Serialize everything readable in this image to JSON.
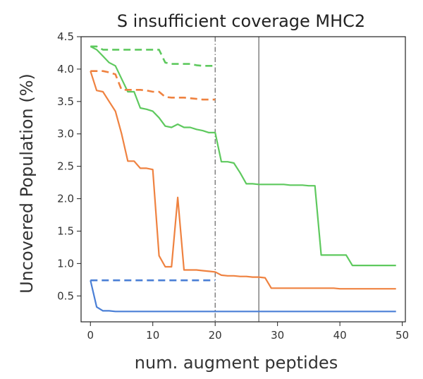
{
  "chart_data": {
    "type": "line",
    "title": "S insufficient coverage MHC2",
    "xlabel": "num. augment peptides",
    "ylabel": "Uncovered Population (%)",
    "xlim": [
      -1.5,
      50.5
    ],
    "ylim": [
      0.1,
      4.5
    ],
    "xticks": [
      0,
      10,
      20,
      30,
      40,
      50
    ],
    "yticks": [
      0.5,
      1.0,
      1.5,
      2.0,
      2.5,
      3.0,
      3.5,
      4.0,
      4.5
    ],
    "xtick_labels": [
      "0",
      "10",
      "20",
      "30",
      "40",
      "50"
    ],
    "ytick_labels": [
      "0.5",
      "1.0",
      "1.5",
      "2.0",
      "2.5",
      "3.0",
      "3.5",
      "4.0",
      "4.5"
    ],
    "grid": false,
    "legend": "none",
    "vlines": [
      {
        "x": 20,
        "style": "dashdot",
        "color": "#555555"
      },
      {
        "x": 27,
        "style": "solid",
        "color": "#555555"
      }
    ],
    "series": [
      {
        "color": "#5ec95e",
        "style": "solid",
        "x": [
          0,
          1,
          2,
          3,
          4,
          5,
          6,
          7,
          8,
          9,
          10,
          11,
          12,
          13,
          14,
          15,
          16,
          17,
          18,
          19,
          20,
          21,
          22,
          23,
          24,
          25,
          26,
          27,
          28,
          29,
          30,
          31,
          32,
          33,
          34,
          35,
          36,
          37,
          38,
          39,
          40,
          41,
          42,
          43,
          44,
          45,
          46,
          47,
          48,
          49
        ],
        "y": [
          4.35,
          4.3,
          4.2,
          4.1,
          4.05,
          3.85,
          3.65,
          3.65,
          3.4,
          3.38,
          3.35,
          3.25,
          3.12,
          3.1,
          3.15,
          3.1,
          3.1,
          3.07,
          3.05,
          3.02,
          3.02,
          2.57,
          2.57,
          2.55,
          2.4,
          2.23,
          2.23,
          2.22,
          2.22,
          2.22,
          2.22,
          2.22,
          2.21,
          2.21,
          2.21,
          2.2,
          2.2,
          1.13,
          1.13,
          1.13,
          1.13,
          1.13,
          0.97,
          0.97,
          0.97,
          0.97,
          0.97,
          0.97,
          0.97,
          0.97
        ]
      },
      {
        "color": "#5ec95e",
        "style": "dashed",
        "x": [
          0,
          1,
          2,
          3,
          4,
          5,
          6,
          7,
          8,
          9,
          10,
          11,
          12,
          13,
          14,
          15,
          16,
          17,
          18,
          19,
          20
        ],
        "y": [
          4.35,
          4.35,
          4.3,
          4.3,
          4.3,
          4.3,
          4.3,
          4.3,
          4.3,
          4.3,
          4.3,
          4.3,
          4.1,
          4.08,
          4.08,
          4.08,
          4.08,
          4.06,
          4.05,
          4.05,
          4.05
        ]
      },
      {
        "color": "#ef8240",
        "style": "solid",
        "x": [
          0,
          1,
          2,
          3,
          4,
          5,
          6,
          7,
          8,
          9,
          10,
          11,
          12,
          13,
          14,
          15,
          16,
          17,
          18,
          19,
          20,
          21,
          22,
          23,
          24,
          25,
          26,
          27,
          28,
          29,
          30,
          31,
          32,
          33,
          34,
          35,
          36,
          37,
          38,
          39,
          40,
          41,
          42,
          43,
          44,
          45,
          46,
          47,
          48,
          49
        ],
        "y": [
          3.97,
          3.67,
          3.65,
          3.5,
          3.35,
          3.0,
          2.58,
          2.58,
          2.47,
          2.47,
          2.45,
          1.12,
          0.95,
          0.95,
          2.02,
          0.9,
          0.9,
          0.9,
          0.89,
          0.88,
          0.87,
          0.82,
          0.81,
          0.81,
          0.8,
          0.8,
          0.79,
          0.79,
          0.78,
          0.62,
          0.62,
          0.62,
          0.62,
          0.62,
          0.62,
          0.62,
          0.62,
          0.62,
          0.62,
          0.62,
          0.61,
          0.61,
          0.61,
          0.61,
          0.61,
          0.61,
          0.61,
          0.61,
          0.61,
          0.61
        ]
      },
      {
        "color": "#ef8240",
        "style": "dashed",
        "x": [
          0,
          1,
          2,
          3,
          4,
          5,
          6,
          7,
          8,
          9,
          10,
          11,
          12,
          13,
          14,
          15,
          16,
          17,
          18,
          19,
          20
        ],
        "y": [
          3.97,
          3.97,
          3.97,
          3.95,
          3.92,
          3.68,
          3.68,
          3.68,
          3.68,
          3.67,
          3.65,
          3.65,
          3.57,
          3.56,
          3.56,
          3.56,
          3.55,
          3.54,
          3.53,
          3.53,
          3.53
        ]
      },
      {
        "color": "#4a7fd6",
        "style": "solid",
        "x": [
          0,
          1,
          2,
          3,
          4,
          5,
          6,
          7,
          8,
          9,
          10,
          11,
          12,
          13,
          14,
          15,
          16,
          17,
          18,
          19,
          20,
          21,
          22,
          23,
          24,
          25,
          26,
          27,
          28,
          29,
          30,
          31,
          32,
          33,
          34,
          35,
          36,
          37,
          38,
          39,
          40,
          41,
          42,
          43,
          44,
          45,
          46,
          47,
          48,
          49
        ],
        "y": [
          0.74,
          0.33,
          0.27,
          0.27,
          0.26,
          0.26,
          0.26,
          0.26,
          0.26,
          0.26,
          0.26,
          0.26,
          0.26,
          0.26,
          0.26,
          0.26,
          0.26,
          0.26,
          0.26,
          0.26,
          0.26,
          0.26,
          0.26,
          0.26,
          0.26,
          0.26,
          0.26,
          0.26,
          0.26,
          0.26,
          0.26,
          0.26,
          0.26,
          0.26,
          0.26,
          0.26,
          0.26,
          0.26,
          0.26,
          0.26,
          0.26,
          0.26,
          0.26,
          0.26,
          0.26,
          0.26,
          0.26,
          0.26,
          0.26,
          0.26
        ]
      },
      {
        "color": "#4a7fd6",
        "style": "dashed",
        "x": [
          0,
          5,
          10,
          15,
          20
        ],
        "y": [
          0.74,
          0.74,
          0.74,
          0.74,
          0.74
        ]
      }
    ]
  }
}
